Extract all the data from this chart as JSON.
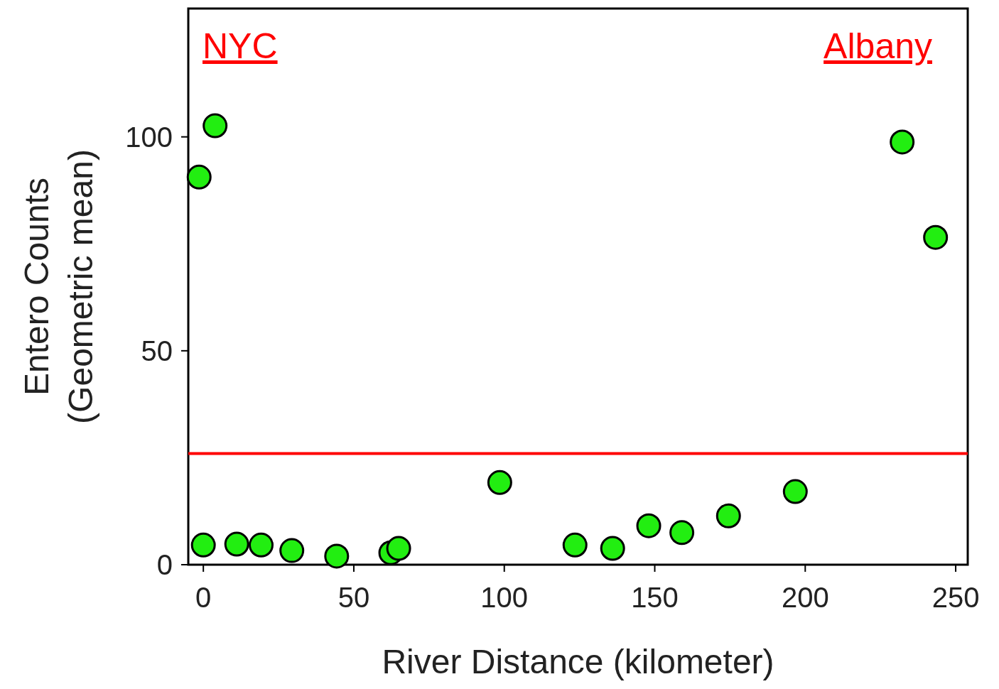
{
  "chart_data": {
    "type": "scatter",
    "xlabel": "River Distance (kilometer)",
    "ylabel": "Entero Counts\n(Geometric mean)",
    "x": [
      -1.4,
      3.9,
      0,
      11.1,
      19.2,
      29.4,
      44.3,
      62.3,
      64.9,
      98.5,
      123.5,
      136,
      148,
      159,
      174.5,
      196.7,
      232.2,
      243.3
    ],
    "series": [
      {
        "color": "#22ee11",
        "values": [
          90.6,
          102.6,
          4.6,
          4.8,
          4.6,
          3.3,
          2.0,
          2.8,
          3.8,
          19.2,
          4.6,
          3.8,
          9.1,
          7.5,
          11.4,
          17.1,
          98.8,
          76.5
        ]
      }
    ],
    "xlim": [
      -5,
      254
    ],
    "xticks": [
      0,
      50,
      100,
      150,
      200,
      250
    ],
    "ylim": [
      0,
      130
    ],
    "yticks": [
      0,
      50,
      100
    ],
    "marker": "circle",
    "grid": false,
    "ref_lines": [
      {
        "axis": "y",
        "value": 26,
        "color": "#ff0000"
      }
    ],
    "annotations": [
      "NYC",
      "Albany"
    ]
  }
}
